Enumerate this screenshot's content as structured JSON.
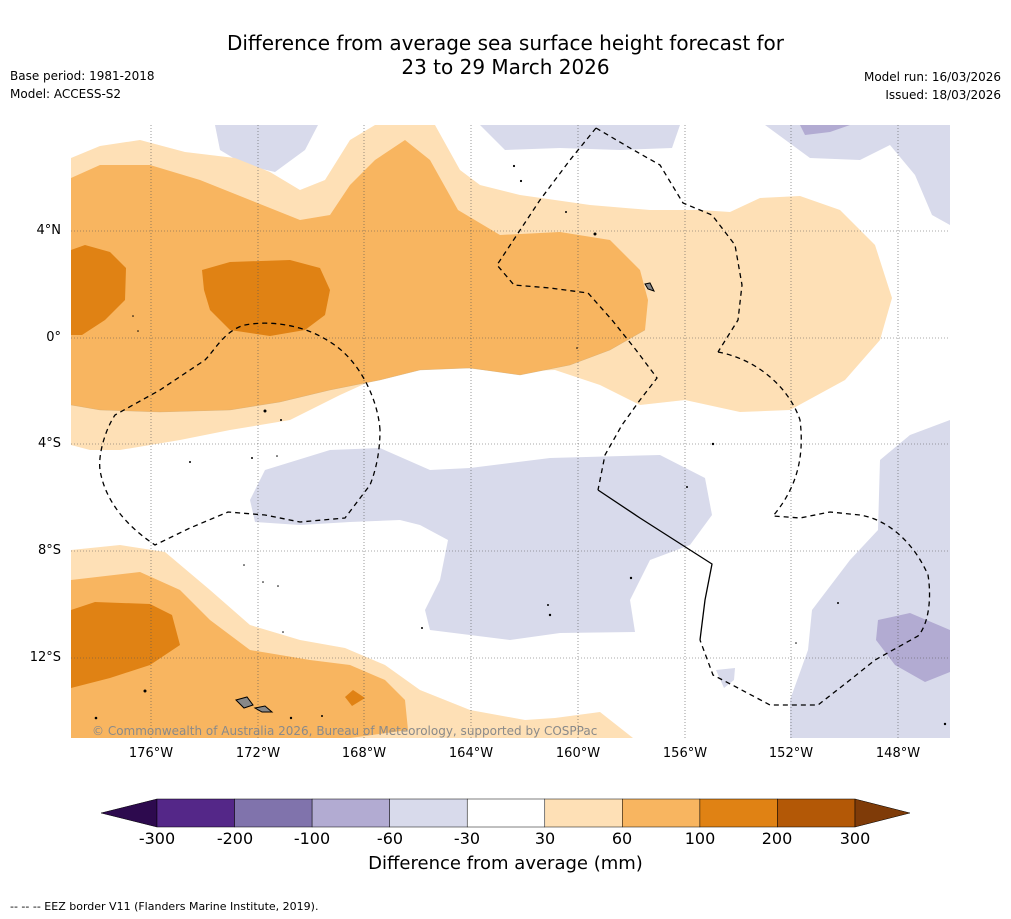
{
  "title_line1": "Difference from average sea surface height forecast for",
  "title_line2": "23 to 29 March 2026",
  "base_period": "Base period: 1981-2018",
  "model": "Model: ACCESS-S2",
  "model_run": "Model run: 16/03/2026",
  "issued": "Issued: 18/03/2026",
  "latitudes": [
    "4°N",
    "0°",
    "4°S",
    "8°S",
    "12°S"
  ],
  "longitudes": [
    "176°W",
    "172°W",
    "168°W",
    "164°W",
    "160°W",
    "156°W",
    "152°W",
    "148°W"
  ],
  "copyright": "© Commonwealth of Australia 2026, Bureau of Meteorology, supported by COSPPac",
  "colorbar": {
    "title": "Difference from average (mm)",
    "ticks": [
      "-300",
      "-200",
      "-100",
      "-60",
      "-30",
      "30",
      "60",
      "100",
      "200",
      "300"
    ],
    "colors": {
      "below_-300": "#2d0a4e",
      "-300_-200": "#542788",
      "-200_-100": "#8073ac",
      "-100_-60": "#b2abd2",
      "-60_-30": "#d8daeb",
      "-30_30": "#ffffff",
      "30_60": "#fee0b6",
      "60_100": "#f8b560",
      "100_200": "#e08214",
      "200_300": "#b35806",
      "above_300": "#7f3b08"
    }
  },
  "footnote": "--  --  -- EEZ border V11 (Flanders Marine Institute, 2019)."
}
